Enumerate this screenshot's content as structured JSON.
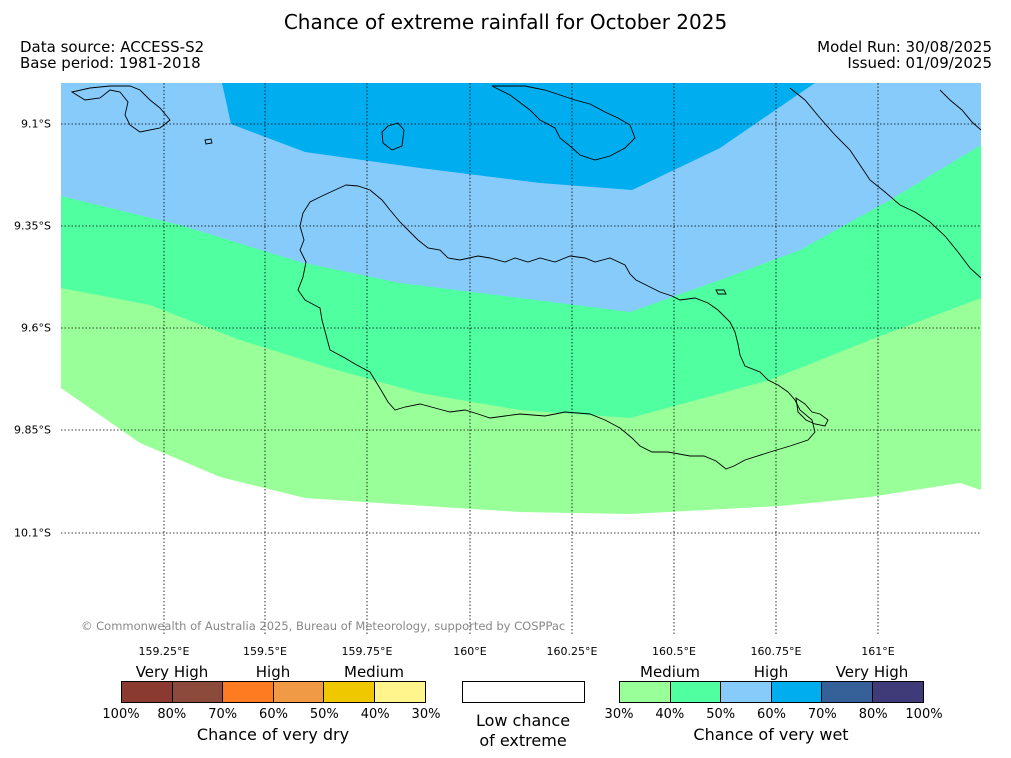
{
  "title": "Chance of extreme rainfall for October 2025",
  "meta": {
    "data_source": "Data source: ACCESS-S2",
    "base_period": "Base period: 1981-2018",
    "model_run": "Model Run: 30/08/2025",
    "issued": "Issued: 01/09/2025"
  },
  "map": {
    "lon_labels": [
      "159.25°E",
      "159.5°E",
      "159.75°E",
      "160°E",
      "160.25°E",
      "160.5°E",
      "160.75°E",
      "161°E"
    ],
    "lat_labels": [
      "9.1°S",
      "9.35°S",
      "9.6°S",
      "9.85°S",
      "10.1°S"
    ],
    "copyright": "© Commonwealth of Australia 2025, Bureau of Meteorology, supported by COSPPac",
    "zone_colors": {
      "very_wet_70_80": "#00aeef",
      "very_wet_60_70": "#87cbfa",
      "very_wet_50_60": "#50ffa0",
      "very_wet_40_50": "#99ff99"
    }
  },
  "legend": {
    "dry": {
      "title": "Chance of very dry",
      "categories": [
        "Very High",
        "High",
        "Medium"
      ],
      "ticks": [
        "100%",
        "80%",
        "70%",
        "60%",
        "50%",
        "40%",
        "30%"
      ],
      "colors": [
        "#8b3a32",
        "#8c4a3c",
        "#ff7b22",
        "#f09a45",
        "#f0c800",
        "#fff58c"
      ]
    },
    "low": {
      "line1": "Low chance",
      "line2": "of extreme",
      "color": "#ffffff"
    },
    "wet": {
      "title": "Chance of very wet",
      "categories": [
        "Medium",
        "High",
        "Very High"
      ],
      "ticks": [
        "30%",
        "40%",
        "50%",
        "60%",
        "70%",
        "80%",
        "100%"
      ],
      "colors": [
        "#99ff99",
        "#50ffa0",
        "#87cbfa",
        "#00aeef",
        "#366198",
        "#3f3a78"
      ]
    }
  }
}
